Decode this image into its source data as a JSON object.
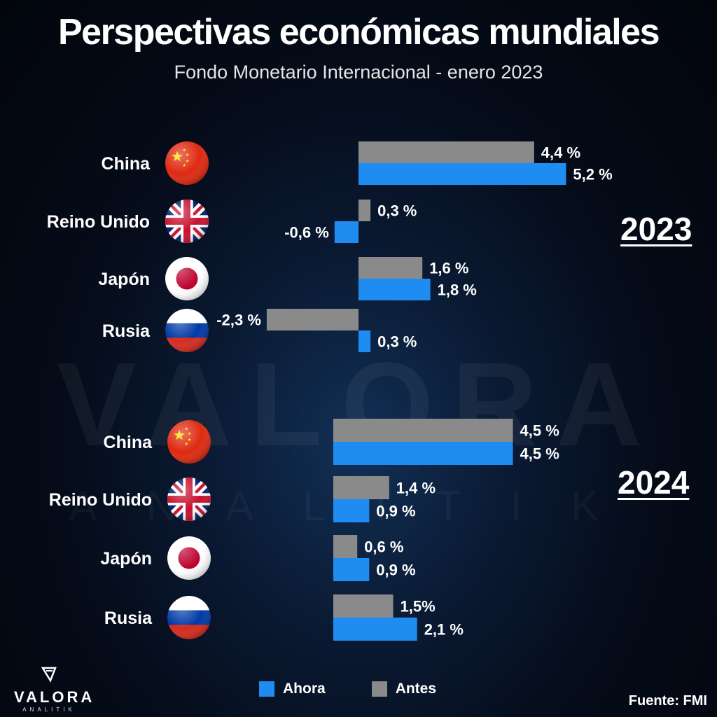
{
  "header": {
    "title": "Perspectivas económicas mundiales",
    "subtitle": "Fondo Monetario Internacional - enero 2023"
  },
  "watermark": {
    "main": "VALORA",
    "sub": "ANALITIK"
  },
  "logo": {
    "name": "VALORA",
    "sub": "ANALITIK",
    "icon": "valora-logo-icon"
  },
  "legend": {
    "now_label": "Ahora",
    "before_label": "Antes"
  },
  "source": "Fuente: FMI",
  "colors": {
    "now": "#1e8cf0",
    "before": "#8a8a8a"
  },
  "chart_data": [
    {
      "type": "bar",
      "orientation": "horizontal",
      "year_label": "2023",
      "categories": [
        "China",
        "Reino Unido",
        "Japón",
        "Rusia"
      ],
      "flags": [
        "china-flag-icon",
        "uk-flag-icon",
        "japan-flag-icon",
        "russia-flag-icon"
      ],
      "series": [
        {
          "name": "Antes",
          "values": [
            4.4,
            0.3,
            1.6,
            -2.3
          ],
          "labels": [
            "4,4 %",
            "0,3 %",
            "1,6 %",
            "-2,3 %"
          ]
        },
        {
          "name": "Ahora",
          "values": [
            5.2,
            -0.6,
            1.8,
            0.3
          ],
          "labels": [
            "5,2 %",
            "-0,6 %",
            "1,8 %",
            "0,3 %"
          ]
        }
      ]
    },
    {
      "type": "bar",
      "orientation": "horizontal",
      "year_label": "2024",
      "categories": [
        "China",
        "Reino Unido",
        "Japón",
        "Rusia"
      ],
      "flags": [
        "china-flag-icon",
        "uk-flag-icon",
        "japan-flag-icon",
        "russia-flag-icon"
      ],
      "series": [
        {
          "name": "Antes",
          "values": [
            4.5,
            1.4,
            0.6,
            1.5
          ],
          "labels": [
            "4,5 %",
            "1,4 %",
            "0,6 %",
            "1,5%"
          ]
        },
        {
          "name": "Ahora",
          "values": [
            4.5,
            0.9,
            0.9,
            2.1
          ],
          "labels": [
            "4,5 %",
            "0,9 %",
            "0,9 %",
            "2,1 %"
          ]
        }
      ]
    }
  ]
}
